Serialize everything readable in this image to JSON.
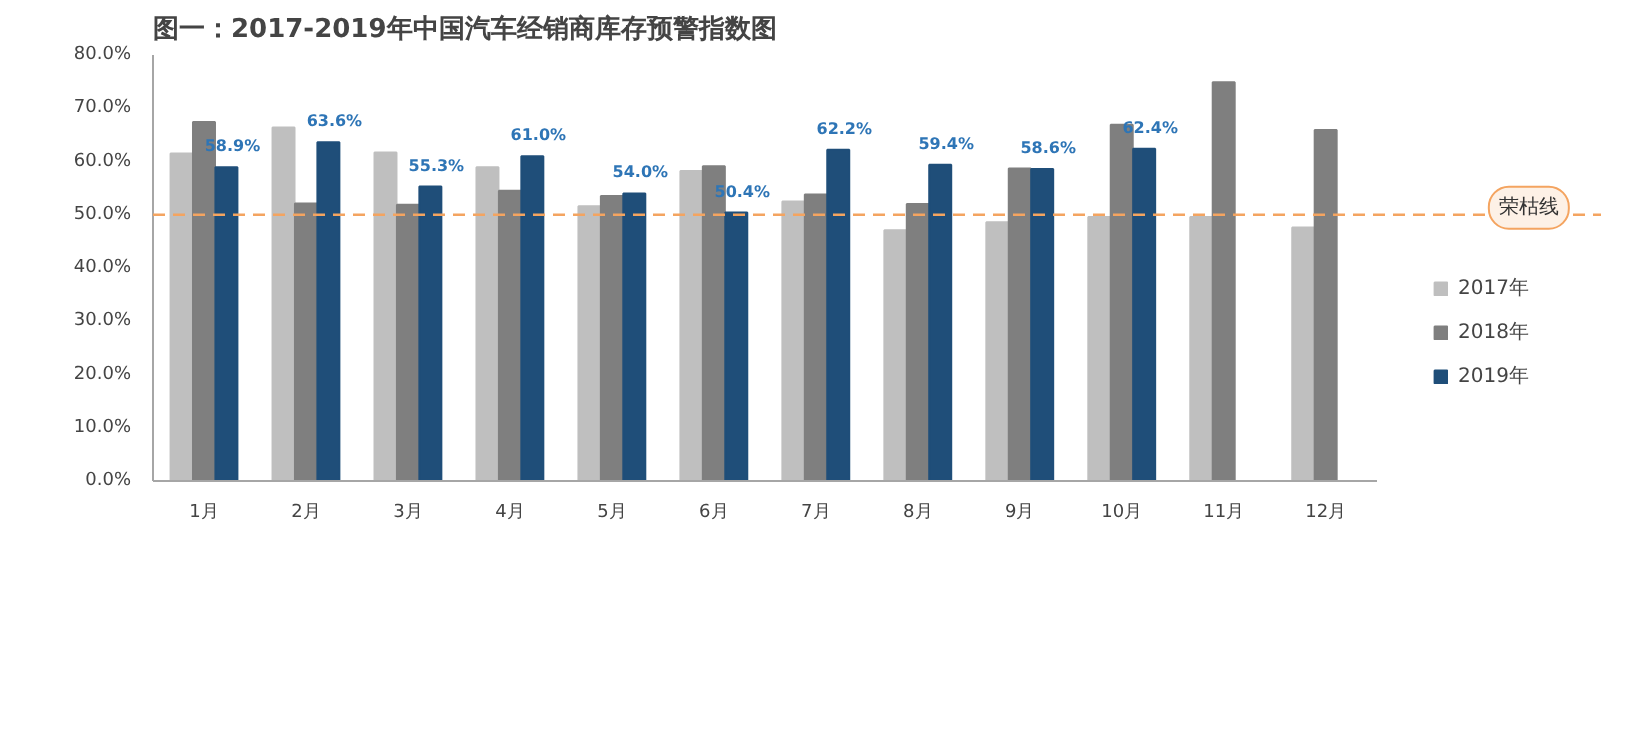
{
  "chart_data": {
    "type": "bar",
    "title": "图一：2017-2019年中国汽车经销商库存预警指数图",
    "categories": [
      "1月",
      "2月",
      "3月",
      "4月",
      "5月",
      "6月",
      "7月",
      "8月",
      "9月",
      "10月",
      "11月",
      "12月"
    ],
    "series": [
      {
        "name": "2017年",
        "color": "#bfbfbf",
        "values": [
          61.5,
          66.4,
          61.7,
          58.9,
          51.6,
          58.2,
          52.5,
          47.1,
          48.6,
          49.6,
          49.6,
          47.6
        ]
      },
      {
        "name": "2018年",
        "color": "#7f7f7f",
        "values": [
          67.4,
          52.1,
          51.9,
          54.5,
          53.5,
          59.1,
          53.8,
          52.0,
          58.7,
          66.9,
          74.9,
          65.9
        ]
      },
      {
        "name": "2019年",
        "color": "#1f4e79",
        "values": [
          58.9,
          63.6,
          55.3,
          61.0,
          54.0,
          50.4,
          62.2,
          59.4,
          58.6,
          62.4,
          null,
          null
        ],
        "value_labels": [
          "58.9%",
          "63.6%",
          "55.3%",
          "61.0%",
          "54.0%",
          "50.4%",
          "62.2%",
          "59.4%",
          "58.6%",
          "62.4%",
          null,
          null
        ]
      }
    ],
    "ylim": [
      0,
      80
    ],
    "yticks": [
      {
        "value": 0,
        "label": "0.0%"
      },
      {
        "value": 10,
        "label": "10.0%"
      },
      {
        "value": 20,
        "label": "20.0%"
      },
      {
        "value": 30,
        "label": "30.0%"
      },
      {
        "value": 40,
        "label": "40.0%"
      },
      {
        "value": 50,
        "label": "50.0%"
      },
      {
        "value": 60,
        "label": "60.0%"
      },
      {
        "value": 70,
        "label": "70.0%"
      },
      {
        "value": 80,
        "label": "80.0%"
      }
    ],
    "ref_lines": [
      {
        "axis": "y",
        "value": 50,
        "label": "荣枯线",
        "color": "#f4a460",
        "line_style": "dashed"
      }
    ],
    "grid": false,
    "legend": "right"
  }
}
